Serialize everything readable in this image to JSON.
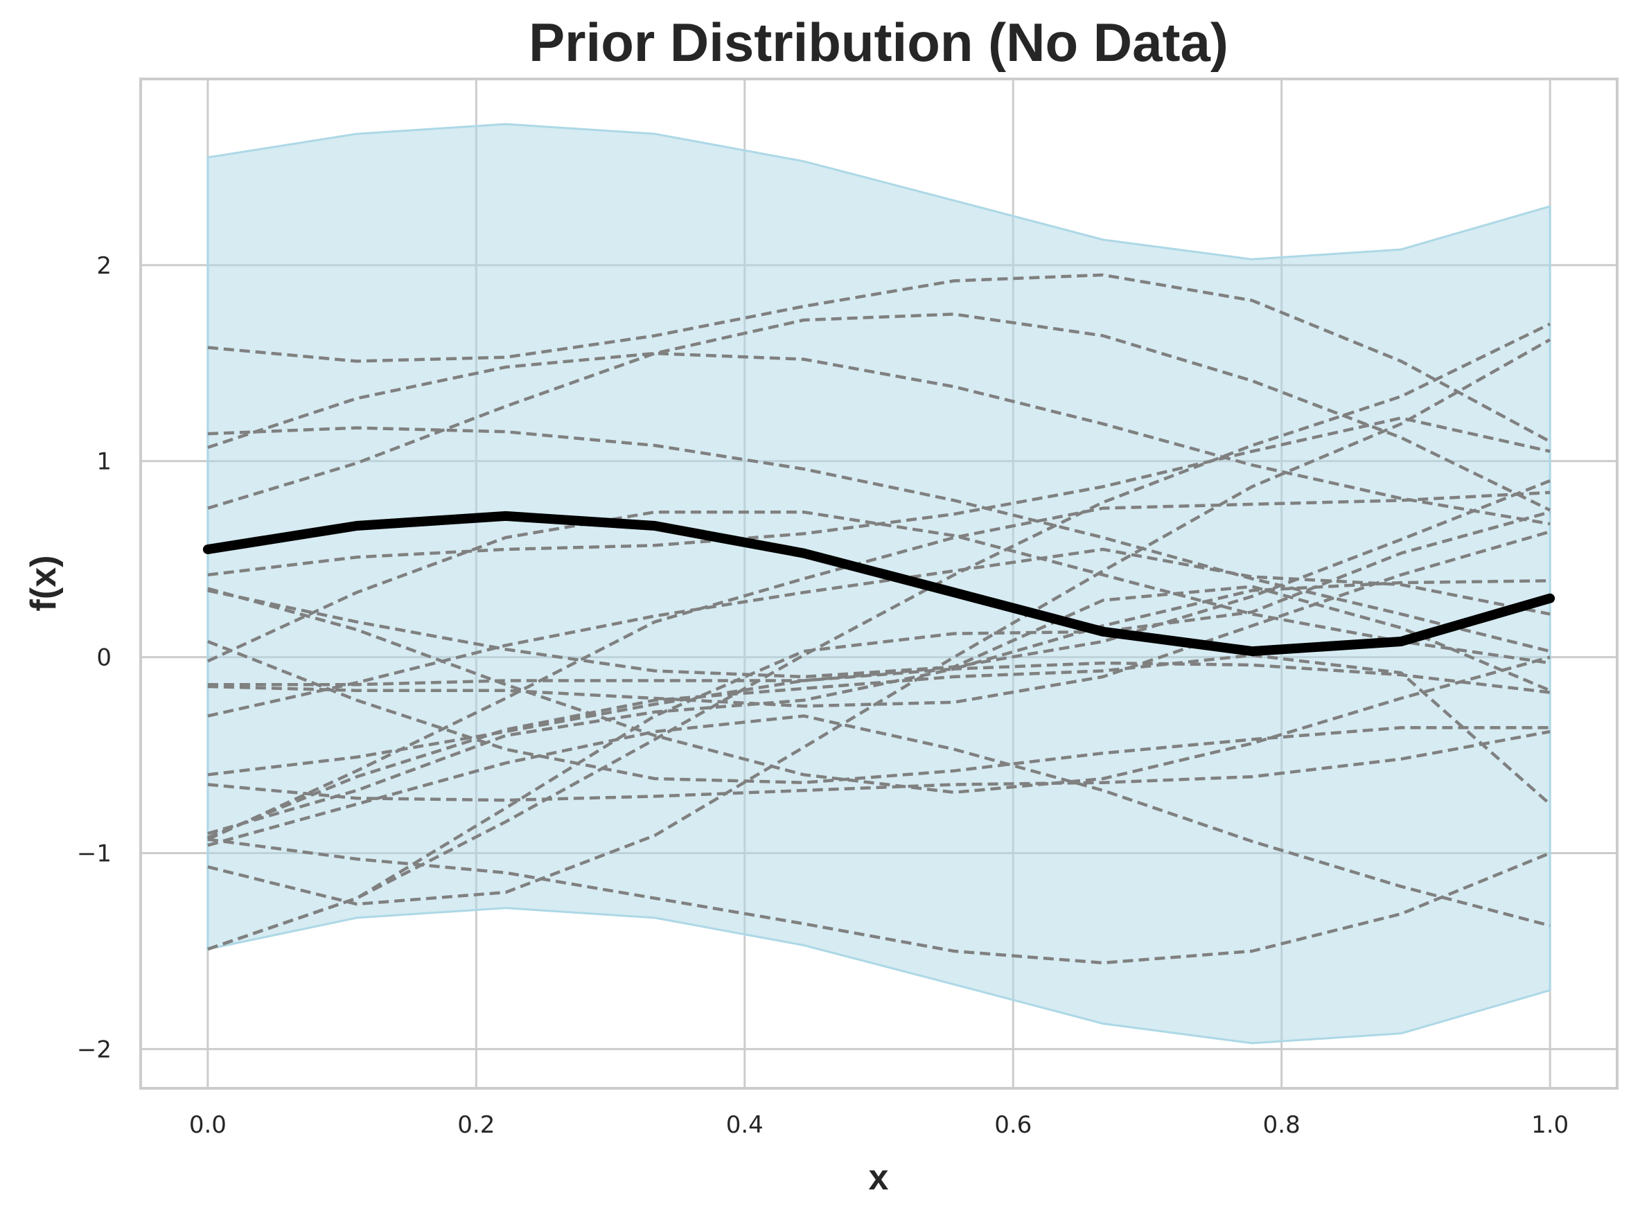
{
  "chart_data": {
    "type": "line",
    "title": "Prior Distribution (No Data)",
    "xlabel": "x",
    "ylabel": "f(x)",
    "xlim": [
      -0.05,
      1.05
    ],
    "ylim": [
      -2.2,
      2.95
    ],
    "x_ticks": [
      0.0,
      0.2,
      0.4,
      0.6,
      0.8,
      1.0
    ],
    "x_tick_labels": [
      "0.0",
      "0.2",
      "0.4",
      "0.6",
      "0.8",
      "1.0"
    ],
    "y_ticks": [
      -2,
      -1,
      0,
      1,
      2
    ],
    "y_tick_labels": [
      "−2",
      "−1",
      "0",
      "1",
      "2"
    ],
    "grid": true,
    "x": [
      0.0,
      0.111,
      0.222,
      0.333,
      0.444,
      0.556,
      0.667,
      0.778,
      0.889,
      1.0
    ],
    "band": {
      "upper": [
        2.55,
        2.67,
        2.72,
        2.67,
        2.53,
        2.33,
        2.13,
        2.03,
        2.08,
        2.3
      ],
      "lower": [
        -1.49,
        -1.33,
        -1.28,
        -1.33,
        -1.47,
        -1.67,
        -1.87,
        -1.97,
        -1.92,
        -1.7
      ]
    },
    "mean": [
      0.55,
      0.67,
      0.72,
      0.67,
      0.53,
      0.33,
      0.13,
      0.03,
      0.08,
      0.3
    ],
    "samples": [
      [
        1.58,
        1.51,
        1.53,
        1.64,
        1.79,
        1.92,
        1.95,
        1.82,
        1.51,
        1.1
      ],
      [
        1.07,
        1.32,
        1.48,
        1.55,
        1.52,
        1.38,
        1.19,
        0.98,
        0.81,
        0.68
      ],
      [
        1.14,
        1.17,
        1.15,
        1.08,
        0.96,
        0.8,
        0.61,
        0.4,
        0.22,
        0.03
      ],
      [
        0.76,
        0.99,
        1.28,
        1.55,
        1.72,
        1.75,
        1.64,
        1.41,
        1.12,
        0.75
      ],
      [
        0.42,
        0.51,
        0.55,
        0.57,
        0.63,
        0.73,
        0.87,
        1.05,
        1.22,
        1.05
      ],
      [
        0.35,
        0.14,
        -0.14,
        -0.4,
        -0.6,
        -0.69,
        -0.62,
        -0.44,
        -0.21,
        0.0
      ],
      [
        0.34,
        0.18,
        0.04,
        -0.07,
        -0.1,
        -0.05,
        0.08,
        0.31,
        0.6,
        0.9
      ],
      [
        -0.02,
        0.33,
        0.61,
        0.74,
        0.74,
        0.62,
        0.42,
        0.22,
        0.08,
        -0.03
      ],
      [
        0.08,
        -0.22,
        -0.47,
        -0.62,
        -0.64,
        -0.58,
        -0.49,
        -0.42,
        -0.36,
        -0.36
      ],
      [
        -0.14,
        -0.14,
        -0.12,
        -0.12,
        -0.12,
        -0.06,
        0.16,
        0.34,
        0.38,
        0.39
      ],
      [
        -0.15,
        -0.17,
        -0.17,
        -0.21,
        -0.25,
        -0.23,
        -0.1,
        0.16,
        0.42,
        0.64
      ],
      [
        -0.3,
        -0.13,
        0.06,
        0.21,
        0.33,
        0.44,
        0.55,
        0.41,
        0.37,
        0.22
      ],
      [
        -0.6,
        -0.51,
        -0.38,
        -0.24,
        -0.12,
        -0.05,
        0.29,
        0.36,
        0.15,
        -0.17
      ],
      [
        -0.65,
        -0.72,
        -0.73,
        -0.71,
        -0.68,
        -0.65,
        -0.64,
        -0.61,
        -0.52,
        -0.38
      ],
      [
        -0.9,
        -0.68,
        -0.4,
        -0.28,
        -0.22,
        -0.06,
        -0.03,
        -0.04,
        -0.09,
        -0.18
      ],
      [
        -0.93,
        -1.03,
        -1.1,
        -1.23,
        -1.36,
        -1.5,
        -1.56,
        -1.5,
        -1.31,
        -1.0
      ],
      [
        -0.96,
        -0.75,
        -0.54,
        -0.38,
        -0.3,
        -0.47,
        -0.68,
        -0.94,
        -1.17,
        -1.37
      ],
      [
        -1.07,
        -1.26,
        -1.2,
        -0.91,
        -0.46,
        0.0,
        0.44,
        0.87,
        1.19,
        1.62
      ],
      [
        -1.49,
        -1.23,
        -0.84,
        -0.42,
        0.01,
        0.42,
        0.79,
        1.08,
        1.33,
        1.7
      ],
      [
        -1.49,
        -1.23,
        -0.77,
        -0.3,
        0.03,
        0.12,
        0.13,
        0.23,
        0.53,
        0.74
      ],
      [
        -0.92,
        -0.61,
        -0.37,
        -0.22,
        -0.16,
        -0.1,
        -0.07,
        0.01,
        -0.08,
        -0.75
      ],
      [
        -0.93,
        -0.58,
        -0.21,
        0.18,
        0.4,
        0.61,
        0.76,
        0.78,
        0.8,
        0.84
      ]
    ],
    "colors": {
      "band": "#add8e6",
      "mean": "#000000",
      "samples": "#808080",
      "grid": "#cccccc",
      "text": "#262626"
    }
  }
}
